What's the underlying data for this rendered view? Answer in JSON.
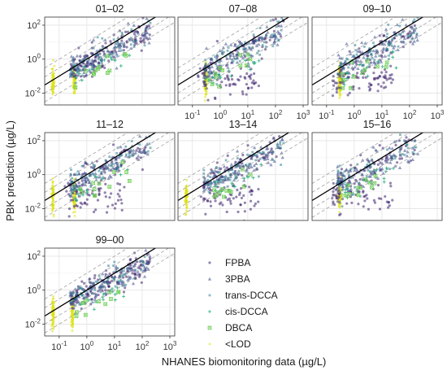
{
  "chart_data": {
    "type": "scatter",
    "xlabel": "NHANES biomonitoring data (µg/L)",
    "ylabel": "PBK prediction (µg/L)",
    "xscale": "log",
    "yscale": "log",
    "xlim": [
      0.03,
      1500
    ],
    "ylim": [
      0.002,
      300
    ],
    "x_ticks": [
      {
        "value": 0.1,
        "label": "10",
        "exp": "-1"
      },
      {
        "value": 1,
        "label": "10",
        "exp": "0"
      },
      {
        "value": 10,
        "label": "10",
        "exp": "1"
      },
      {
        "value": 100,
        "label": "10",
        "exp": "2"
      },
      {
        "value": 1000,
        "label": "10",
        "exp": "3"
      }
    ],
    "y_ticks": [
      {
        "value": 0.01,
        "label": "10",
        "exp": "-2"
      },
      {
        "value": 1,
        "label": "10",
        "exp": "0"
      },
      {
        "value": 100,
        "label": "10",
        "exp": "2"
      }
    ],
    "reference_lines": {
      "identity": "y = x",
      "dashed_fold": [
        3,
        10
      ]
    },
    "legend": [
      {
        "name": "FPBA",
        "symbol": "●",
        "color": "#3b1f6b"
      },
      {
        "name": "3PBA",
        "symbol": "▲",
        "color": "#3d4f8c"
      },
      {
        "name": "trans-DCCA",
        "symbol": "■",
        "color": "#2a7f8e"
      },
      {
        "name": "cis-DCCA",
        "symbol": "+",
        "color": "#2ab07f"
      },
      {
        "name": "DBCA",
        "symbol": "⊠",
        "color": "#6fcf57"
      },
      {
        "name": "<LOD",
        "symbol": "◆",
        "color": "#dde318"
      }
    ],
    "panels": [
      {
        "title": "01–02",
        "lod": [
          0.06,
          0.35
        ],
        "fpba_low": false,
        "seed": 11
      },
      {
        "title": "07–08",
        "lod": [
          0.3
        ],
        "fpba_low": true,
        "seed": 23
      },
      {
        "title": "09–10",
        "lod": [
          0.3
        ],
        "fpba_low": true,
        "seed": 37
      },
      {
        "title": "11–12",
        "lod": [
          0.06,
          0.35
        ],
        "fpba_low": true,
        "seed": 41
      },
      {
        "title": "13–14",
        "lod": [
          0.06
        ],
        "fpba_low": true,
        "seed": 53
      },
      {
        "title": "15–16",
        "lod": [
          0.3
        ],
        "fpba_low": true,
        "seed": 67
      },
      {
        "title": "99–00",
        "lod": [
          0.06,
          0.3
        ],
        "fpba_low": false,
        "seed": 79
      }
    ]
  }
}
